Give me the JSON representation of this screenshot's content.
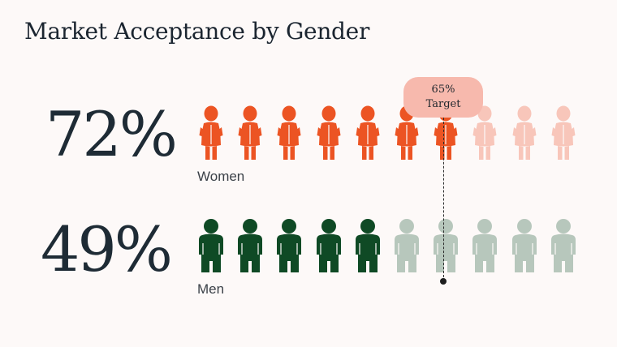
{
  "title": "Market Acceptance by Gender",
  "colors": {
    "women_filled": "#ec5423",
    "women_empty": "#f8c6ba",
    "men_filled": "#0f4a25",
    "men_empty": "#b7c7bc"
  },
  "icons": {
    "women": "woman-figure-icon",
    "men": "man-figure-icon"
  },
  "chart_data": {
    "type": "pictograph",
    "title": "Market Acceptance by Gender",
    "icons_per_row": 10,
    "series": [
      {
        "name": "Women",
        "value": 72,
        "label": "72%"
      },
      {
        "name": "Men",
        "value": 49,
        "label": "49%"
      }
    ],
    "target": {
      "value": 65,
      "label_line1": "65%",
      "label_line2": "Target"
    }
  }
}
